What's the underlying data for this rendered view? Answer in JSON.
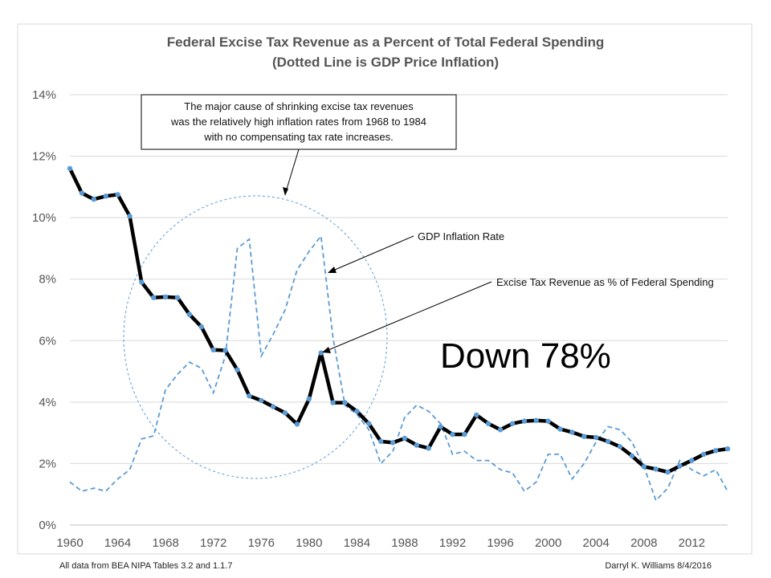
{
  "chart_data": {
    "type": "line",
    "title": "Federal Excise Tax Revenue as a Percent of Total Federal Spending",
    "subtitle": "(Dotted Line is GDP Price Inflation)",
    "xlabel": "",
    "ylabel": "",
    "ylim": [
      0,
      14
    ],
    "y_ticks": [
      "0%",
      "2%",
      "4%",
      "6%",
      "8%",
      "10%",
      "12%",
      "14%"
    ],
    "x_ticks": [
      "1960",
      "1964",
      "1968",
      "1972",
      "1976",
      "1980",
      "1984",
      "1988",
      "1992",
      "1996",
      "2000",
      "2004",
      "2008",
      "2012"
    ],
    "x_range": [
      1960,
      2015
    ],
    "grid": "horizontal",
    "series": [
      {
        "name": "Excise Tax Revenue as % of Federal Spending",
        "style": "solid-markers",
        "color": "#000000",
        "marker_color": "#5b9bd5",
        "x": [
          1960,
          1961,
          1962,
          1963,
          1964,
          1965,
          1966,
          1967,
          1968,
          1969,
          1970,
          1971,
          1972,
          1973,
          1974,
          1975,
          1976,
          1977,
          1978,
          1979,
          1980,
          1981,
          1982,
          1983,
          1984,
          1985,
          1986,
          1987,
          1988,
          1989,
          1990,
          1991,
          1992,
          1993,
          1994,
          1995,
          1996,
          1997,
          1998,
          1999,
          2000,
          2001,
          2002,
          2003,
          2004,
          2005,
          2006,
          2007,
          2008,
          2009,
          2010,
          2011,
          2012,
          2013,
          2014,
          2015
        ],
        "values": [
          11.6,
          10.8,
          10.6,
          10.7,
          10.75,
          10.05,
          7.9,
          7.4,
          7.42,
          7.4,
          6.85,
          6.45,
          5.7,
          5.68,
          5.05,
          4.2,
          4.05,
          3.85,
          3.65,
          3.28,
          4.1,
          5.6,
          3.98,
          3.98,
          3.7,
          3.3,
          2.72,
          2.68,
          2.82,
          2.6,
          2.5,
          3.2,
          2.95,
          2.95,
          3.58,
          3.3,
          3.1,
          3.3,
          3.38,
          3.4,
          3.38,
          3.12,
          3.02,
          2.88,
          2.85,
          2.72,
          2.55,
          2.25,
          1.9,
          1.82,
          1.72,
          1.92,
          2.1,
          2.3,
          2.42,
          2.48
        ]
      },
      {
        "name": "GDP Inflation Rate",
        "style": "dashed",
        "color": "#5b9bd5",
        "x": [
          1960,
          1961,
          1962,
          1963,
          1964,
          1965,
          1966,
          1967,
          1968,
          1969,
          1970,
          1971,
          1972,
          1973,
          1974,
          1975,
          1976,
          1977,
          1978,
          1979,
          1980,
          1981,
          1982,
          1983,
          1984,
          1985,
          1986,
          1987,
          1988,
          1989,
          1990,
          1991,
          1992,
          1993,
          1994,
          1995,
          1996,
          1997,
          1998,
          1999,
          2000,
          2001,
          2002,
          2003,
          2004,
          2005,
          2006,
          2007,
          2008,
          2009,
          2010,
          2011,
          2012,
          2013,
          2014,
          2015
        ],
        "values": [
          1.4,
          1.1,
          1.2,
          1.1,
          1.5,
          1.8,
          2.8,
          2.9,
          4.4,
          4.9,
          5.3,
          5.1,
          4.3,
          5.5,
          9.0,
          9.3,
          5.5,
          6.2,
          7.0,
          8.3,
          8.9,
          9.4,
          6.1,
          3.9,
          3.6,
          3.1,
          2.0,
          2.4,
          3.5,
          3.9,
          3.7,
          3.3,
          2.3,
          2.4,
          2.1,
          2.1,
          1.8,
          1.7,
          1.1,
          1.4,
          2.3,
          2.3,
          1.5,
          2.0,
          2.7,
          3.2,
          3.1,
          2.7,
          1.9,
          0.8,
          1.2,
          2.1,
          1.8,
          1.6,
          1.8,
          1.1
        ]
      }
    ],
    "annotations": {
      "note_box": [
        "The major cause of shrinking excise tax revenues",
        "was the relatively high inflation rates from 1968 to 1984",
        "with no compensating tax rate increases."
      ],
      "inflation_label": "GDP Inflation Rate",
      "excise_label": "Excise Tax Revenue as % of Federal Spending",
      "big_text": "Down 78%"
    },
    "footer": {
      "left": "All data from BEA NIPA Tables 3.2 and 1.1.7",
      "right": "Darryl K. Williams 8/4/2016"
    }
  }
}
